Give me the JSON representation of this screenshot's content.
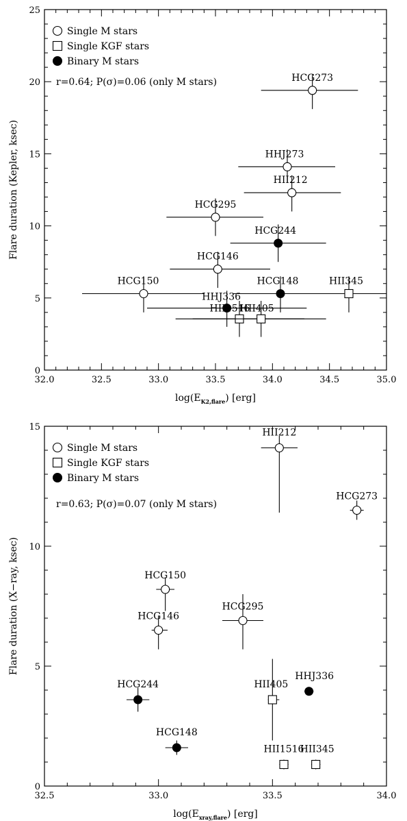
{
  "chart_data": [
    {
      "type": "scatter",
      "xlabel_main": "log(E",
      "xlabel_sub": "K2,flare",
      "xlabel_end": ") [erg]",
      "ylabel": "Flare duration (Kepler, ksec)",
      "xlim": [
        32.0,
        35.0
      ],
      "ylim": [
        0,
        25
      ],
      "xticks": [
        "32.0",
        "32.5",
        "33.0",
        "33.5",
        "34.0",
        "34.5",
        "35.0"
      ],
      "yticks": [
        "0",
        "5",
        "10",
        "15",
        "20",
        "25"
      ],
      "legend": [
        "Single M stars",
        "Single KGF stars",
        "Binary M stars"
      ],
      "legend_position": "top-left",
      "annotation": "r=0.64; P(σ)=0.06 (only M stars)",
      "points": [
        {
          "label": "HCG273",
          "kind": "single_m",
          "x": 34.35,
          "y": 19.4,
          "xerr": [
            33.9,
            34.75
          ],
          "yerr": [
            18.1,
            20.5
          ]
        },
        {
          "label": "HHJ273",
          "kind": "single_m",
          "x": 34.13,
          "y": 14.1,
          "xerr": [
            33.7,
            34.55
          ],
          "yerr": [
            13.0,
            15.3
          ]
        },
        {
          "label": "HII212",
          "kind": "single_m",
          "x": 34.17,
          "y": 12.3,
          "xerr": [
            33.75,
            34.6
          ],
          "yerr": [
            11.0,
            13.5
          ]
        },
        {
          "label": "HCG295",
          "kind": "single_m",
          "x": 33.5,
          "y": 10.6,
          "xerr": [
            33.07,
            33.92
          ],
          "yerr": [
            9.3,
            11.9
          ]
        },
        {
          "label": "HCG244",
          "kind": "binary_m",
          "x": 34.05,
          "y": 8.8,
          "xerr": [
            33.63,
            34.47
          ],
          "yerr": [
            7.5,
            10.1
          ]
        },
        {
          "label": "HCG146",
          "kind": "single_m",
          "x": 33.52,
          "y": 7.0,
          "xerr": [
            33.1,
            33.98
          ],
          "yerr": [
            5.7,
            8.2
          ]
        },
        {
          "label": "HCG150",
          "kind": "single_m",
          "x": 32.87,
          "y": 5.3,
          "xerr": [
            32.33,
            33.4
          ],
          "yerr": [
            4.0,
            6.5
          ]
        },
        {
          "label": "HCG148",
          "kind": "binary_m",
          "x": 34.07,
          "y": 5.3,
          "xerr": [
            33.65,
            34.5
          ],
          "yerr": [
            4.0,
            6.5
          ]
        },
        {
          "label": "HII345",
          "kind": "single_kgf",
          "x": 34.67,
          "y": 5.3,
          "xerr": [
            34.2,
            35.0
          ],
          "yerr": [
            4.0,
            6.5
          ]
        },
        {
          "label": "HHJ336",
          "kind": "binary_m",
          "x": 33.6,
          "y": 4.3,
          "xerr": [
            32.9,
            34.3
          ],
          "yerr": [
            3.0,
            5.5
          ]
        },
        {
          "label": "HII1516",
          "kind": "single_kgf",
          "x": 33.71,
          "y": 3.55,
          "xerr": [
            33.15,
            34.28
          ],
          "yerr": [
            2.3,
            4.8
          ]
        },
        {
          "label": "HII405",
          "kind": "single_kgf",
          "x": 33.9,
          "y": 3.55,
          "xerr": [
            33.3,
            34.47
          ],
          "yerr": [
            2.3,
            4.8
          ]
        }
      ]
    },
    {
      "type": "scatter",
      "xlabel_main": "log(E",
      "xlabel_sub": "xray,flare",
      "xlabel_end": ") [erg]",
      "ylabel": "Flare duration (X−ray, ksec)",
      "xlim": [
        32.5,
        34.0
      ],
      "ylim": [
        0,
        15
      ],
      "xticks": [
        "32.5",
        "33.0",
        "33.5",
        "34.0"
      ],
      "yticks": [
        "0",
        "5",
        "10",
        "15"
      ],
      "legend": [
        "Single M stars",
        "Single KGF stars",
        "Binary M stars"
      ],
      "legend_position": "top-left",
      "annotation": "r=0.63; P(σ)=0.07 (only M stars)",
      "points": [
        {
          "label": "HII212",
          "kind": "single_m",
          "x": 33.53,
          "y": 14.1,
          "xerr": [
            33.45,
            33.61
          ],
          "yerr": [
            11.4,
            14.6
          ]
        },
        {
          "label": "HCG273",
          "kind": "single_m",
          "x": 33.87,
          "y": 11.5,
          "xerr": [
            33.84,
            33.9
          ],
          "yerr": [
            11.1,
            11.9
          ]
        },
        {
          "label": "HCG150",
          "kind": "single_m",
          "x": 33.03,
          "y": 8.2,
          "xerr": [
            32.99,
            33.07
          ],
          "yerr": [
            7.3,
            8.7
          ]
        },
        {
          "label": "HCG146",
          "kind": "single_m",
          "x": 33.0,
          "y": 6.5,
          "xerr": [
            32.97,
            33.04
          ],
          "yerr": [
            5.7,
            7.1
          ]
        },
        {
          "label": "HCG295",
          "kind": "single_m",
          "x": 33.37,
          "y": 6.9,
          "xerr": [
            33.28,
            33.46
          ],
          "yerr": [
            5.7,
            8.0
          ]
        },
        {
          "label": "HCG244",
          "kind": "binary_m",
          "x": 32.91,
          "y": 3.6,
          "xerr": [
            32.86,
            32.96
          ],
          "yerr": [
            3.1,
            4.1
          ]
        },
        {
          "label": "HII405",
          "kind": "single_kgf",
          "x": 33.5,
          "y": 3.6,
          "xerr": [
            33.48,
            33.53
          ],
          "yerr": [
            1.9,
            5.3
          ]
        },
        {
          "label": "HHJ336",
          "kind": "binary_m",
          "x": 33.66,
          "y": 3.95,
          "xerr": [
            33.64,
            33.68
          ],
          "yerr": [
            3.85,
            4.05
          ]
        },
        {
          "label": "HCG148",
          "kind": "binary_m",
          "x": 33.08,
          "y": 1.6,
          "xerr": [
            33.03,
            33.13
          ],
          "yerr": [
            1.3,
            1.9
          ]
        },
        {
          "label": "HII1516",
          "kind": "single_kgf",
          "x": 33.55,
          "y": 0.9,
          "xerr": [
            33.53,
            33.57
          ],
          "yerr": [
            0.7,
            1.1
          ]
        },
        {
          "label": "HII345",
          "kind": "single_kgf",
          "x": 33.69,
          "y": 0.9,
          "xerr": [
            33.67,
            33.71
          ],
          "yerr": [
            0.7,
            1.1
          ]
        }
      ]
    }
  ]
}
